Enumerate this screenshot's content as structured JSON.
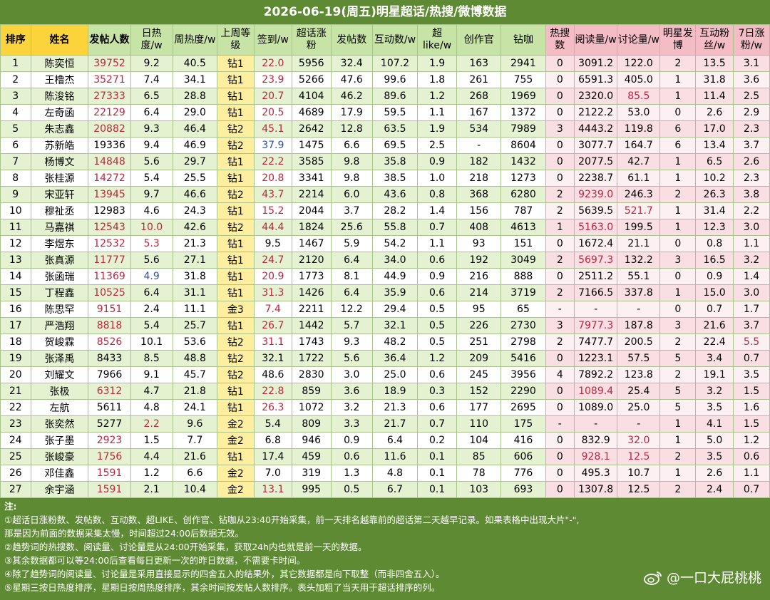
{
  "title": "2026-06-19(周五)明星超话/热搜/微博数据",
  "headers": [
    "排序",
    "姓名",
    "发帖人数",
    "日热度/w",
    "周热度/w",
    "上周等级",
    "签到/w",
    "超话涨粉",
    "发帖数",
    "互动数/w",
    "超like/w",
    "创作官",
    "钻咖",
    "热搜数",
    "阅读量/w",
    "讨论量/w",
    "明星发博",
    "互动粉丝/w",
    "7日涨粉/w"
  ],
  "rows": [
    [
      "1",
      "陈奕恒",
      "39752",
      "9.2",
      "40.5",
      "钻1",
      "22.0",
      "5956",
      "32.4",
      "107.2",
      "1.9",
      "163",
      "2941",
      "0",
      "3091.2",
      "122.0",
      "2",
      "13.5",
      "3.1"
    ],
    [
      "2",
      "王橹杰",
      "35271",
      "7.4",
      "34.1",
      "钻1",
      "23.9",
      "5266",
      "47.6",
      "99.6",
      "1.8",
      "261",
      "755",
      "0",
      "6591.3",
      "405.0",
      "1",
      "31.8",
      "3.6"
    ],
    [
      "3",
      "陈浚铭",
      "27333",
      "6.5",
      "28.8",
      "钻1",
      "20.7",
      "4104",
      "46.2",
      "89.6",
      "1.2",
      "268",
      "1969",
      "0",
      "2320.0",
      "85.5",
      "1",
      "11.4",
      "2.5"
    ],
    [
      "4",
      "左奇函",
      "22129",
      "6.4",
      "29.0",
      "钻1",
      "20.5",
      "4689",
      "17.9",
      "59.5",
      "1.1",
      "167",
      "1372",
      "0",
      "2122.2",
      "53.0",
      "0",
      "2.6",
      "2.9"
    ],
    [
      "5",
      "朱志鑫",
      "20882",
      "9.3",
      "46.4",
      "钻2",
      "45.1",
      "2642",
      "12.8",
      "63.5",
      "1.9",
      "534",
      "7989",
      "3",
      "4443.2",
      "119.8",
      "6",
      "17.0",
      "2.3"
    ],
    [
      "6",
      "苏新皓",
      "19336",
      "9.4",
      "46.9",
      "钻2",
      "37.9",
      "1475",
      "6.6",
      "69.5",
      "2.5",
      "-",
      "8604",
      "0",
      "3077.7",
      "164.7",
      "6",
      "13.4",
      "3.7"
    ],
    [
      "7",
      "杨博文",
      "14848",
      "5.6",
      "29.7",
      "钻1",
      "22.2",
      "3585",
      "9.8",
      "35.8",
      "0.9",
      "182",
      "1432",
      "0",
      "2077.5",
      "42.7",
      "1",
      "6.5",
      "2.6"
    ],
    [
      "8",
      "张桂源",
      "14272",
      "5.4",
      "25.5",
      "钻1",
      "20.8",
      "3341",
      "9.8",
      "38.5",
      "1.0",
      "218",
      "1273",
      "0",
      "2238.7",
      "61.1",
      "1",
      "10.2",
      "2.3"
    ],
    [
      "9",
      "宋亚轩",
      "13945",
      "9.7",
      "46.6",
      "钻2",
      "43.7",
      "2214",
      "6.0",
      "43.6",
      "0.8",
      "368",
      "6280",
      "2",
      "9239.0",
      "246.3",
      "2",
      "26.3",
      "3.8"
    ],
    [
      "10",
      "穆祉丞",
      "12983",
      "4.6",
      "24.3",
      "钻1",
      "15.2",
      "2044",
      "3.7",
      "28.2",
      "1.4",
      "156",
      "787",
      "2",
      "5639.5",
      "521.7",
      "1",
      "31.4",
      "2.2"
    ],
    [
      "11",
      "马嘉祺",
      "12543",
      "10.0",
      "42.6",
      "钻2",
      "44.4",
      "1824",
      "25.6",
      "55.8",
      "0.7",
      "408",
      "4613",
      "1",
      "5163.0",
      "199.5",
      "1",
      "12.3",
      "3.0"
    ],
    [
      "12",
      "李煜东",
      "12532",
      "5.3",
      "21.3",
      "钻1",
      "9.5",
      "1467",
      "5.9",
      "54.2",
      "1.1",
      "93",
      "151",
      "0",
      "1672.4",
      "21.1",
      "0",
      "0.8",
      "1.1"
    ],
    [
      "13",
      "张真源",
      "11777",
      "5.6",
      "27.1",
      "钻1",
      "24.7",
      "2120",
      "6.4",
      "34.0",
      "0.6",
      "192",
      "3049",
      "2",
      "5697.3",
      "132.2",
      "3",
      "16.5",
      "3.2"
    ],
    [
      "14",
      "张函瑞",
      "11369",
      "4.9",
      "31.8",
      "钻1",
      "20.9",
      "1773",
      "8.1",
      "44.9",
      "0.9",
      "216",
      "888",
      "0",
      "2511.2",
      "55.1",
      "0",
      "0.9",
      "1.4"
    ],
    [
      "15",
      "丁程鑫",
      "10525",
      "6.4",
      "31.1",
      "钻1",
      "31.3",
      "1426",
      "6.4",
      "35.9",
      "0.6",
      "214",
      "3719",
      "2",
      "7166.5",
      "337.8",
      "1",
      "15.0",
      "3.0"
    ],
    [
      "16",
      "陈思罕",
      "9151",
      "2.4",
      "11.1",
      "金3",
      "7.4",
      "2211",
      "12.2",
      "29.4",
      "0.5",
      "95",
      "65",
      "-",
      "-",
      "-",
      "0",
      "0.7",
      "1.7"
    ],
    [
      "17",
      "严浩翔",
      "8818",
      "5.4",
      "25.7",
      "钻1",
      "26.7",
      "1442",
      "5.7",
      "32.1",
      "0.5",
      "226",
      "2730",
      "3",
      "7977.3",
      "187.8",
      "3",
      "21.6",
      "3.7"
    ],
    [
      "18",
      "贺峻霖",
      "8526",
      "10.1",
      "53.6",
      "钻2",
      "31.1",
      "1743",
      "9.3",
      "48.2",
      "0.5",
      "251",
      "2798",
      "2",
      "7477.7",
      "200.5",
      "2",
      "22.4",
      "5.5"
    ],
    [
      "19",
      "张泽禹",
      "8433",
      "8.5",
      "48.8",
      "钻2",
      "32.1",
      "1722",
      "5.6",
      "36.4",
      "1.2",
      "209",
      "5416",
      "0",
      "1223.1",
      "57.5",
      "5",
      "3.4",
      "0.7"
    ],
    [
      "20",
      "刘耀文",
      "7966",
      "9.1",
      "45.7",
      "钻2",
      "48.6",
      "2830",
      "3.0",
      "25.0",
      "0.6",
      "245",
      "3956",
      "4",
      "7892.2",
      "123.8",
      "2",
      "19.1",
      "3.5"
    ],
    [
      "21",
      "张极",
      "6312",
      "4.7",
      "21.8",
      "钻1",
      "22.8",
      "859",
      "3.6",
      "18.9",
      "0.3",
      "152",
      "2290",
      "0",
      "1089.4",
      "25.4",
      "5",
      "3.2",
      "1.5"
    ],
    [
      "22",
      "左航",
      "5611",
      "4.8",
      "24.1",
      "钻1",
      "26.3",
      "1072",
      "3.2",
      "21.3",
      "0.6",
      "177",
      "2695",
      "0",
      "1089.0",
      "25.0",
      "5",
      "3.5",
      "1.6"
    ],
    [
      "23",
      "张奕然",
      "5277",
      "2.2",
      "9.6",
      "金2",
      "5.4",
      "809",
      "3.3",
      "21.7",
      "0.7",
      "110",
      "175",
      "-",
      "-",
      "-",
      "1",
      "4.1",
      "1.5"
    ],
    [
      "24",
      "张子墨",
      "2923",
      "1.5",
      "7.7",
      "金2",
      "6.8",
      "946",
      "0.9",
      "6.4",
      "0.2",
      "104",
      "416",
      "0",
      "832.9",
      "32.0",
      "1",
      "5.0",
      "1.2"
    ],
    [
      "25",
      "张峻豪",
      "1756",
      "4.4",
      "21.6",
      "钻1",
      "17.4",
      "459",
      "0.6",
      "11.6",
      "0.1",
      "85",
      "606",
      "0",
      "928.1",
      "12.5",
      "2",
      "3.5",
      "0.6"
    ],
    [
      "26",
      "邓佳鑫",
      "1591",
      "1.2",
      "6.6",
      "金2",
      "7.0",
      "319",
      "1.3",
      "4.8",
      "0.1",
      "78",
      "776",
      "0",
      "495.3",
      "10.7",
      "1",
      "2.6",
      "1.1"
    ],
    [
      "27",
      "余宇涵",
      "1591",
      "2.1",
      "10.4",
      "金2",
      "13.1",
      "995",
      "0.5",
      "6.7",
      "0.1",
      "103",
      "693",
      "0",
      "1307.8",
      "12.5",
      "2",
      "2.4",
      "0.7"
    ]
  ],
  "highlights": {
    "red_cells": [
      [
        0,
        2
      ],
      [
        0,
        6
      ],
      [
        1,
        2
      ],
      [
        1,
        6
      ],
      [
        2,
        2
      ],
      [
        2,
        6
      ],
      [
        2,
        15
      ],
      [
        3,
        2
      ],
      [
        3,
        6
      ],
      [
        4,
        2
      ],
      [
        4,
        6
      ],
      [
        5,
        6
      ],
      [
        6,
        2
      ],
      [
        6,
        6
      ],
      [
        7,
        2
      ],
      [
        7,
        6
      ],
      [
        8,
        2
      ],
      [
        8,
        6
      ],
      [
        8,
        14
      ],
      [
        9,
        6
      ],
      [
        9,
        15
      ],
      [
        10,
        2
      ],
      [
        10,
        3
      ],
      [
        10,
        6
      ],
      [
        10,
        14
      ],
      [
        11,
        2
      ],
      [
        11,
        3
      ],
      [
        12,
        2
      ],
      [
        12,
        6
      ],
      [
        12,
        14
      ],
      [
        13,
        2
      ],
      [
        13,
        6
      ],
      [
        14,
        2
      ],
      [
        14,
        6
      ],
      [
        15,
        2
      ],
      [
        15,
        6
      ],
      [
        16,
        2
      ],
      [
        16,
        6
      ],
      [
        16,
        14
      ],
      [
        17,
        2
      ],
      [
        17,
        6
      ],
      [
        17,
        18
      ],
      [
        20,
        2
      ],
      [
        20,
        6
      ],
      [
        20,
        14
      ],
      [
        21,
        6
      ],
      [
        22,
        3
      ],
      [
        23,
        2
      ],
      [
        23,
        15
      ],
      [
        24,
        2
      ],
      [
        24,
        14
      ],
      [
        24,
        15
      ],
      [
        25,
        2
      ],
      [
        26,
        2
      ],
      [
        26,
        6
      ]
    ],
    "blue_cells": [
      [
        5,
        6
      ],
      [
        13,
        3
      ]
    ],
    "yellow_cells": [
      [
        0,
        5
      ],
      [
        1,
        5
      ],
      [
        2,
        5
      ],
      [
        3,
        5
      ],
      [
        4,
        5
      ],
      [
        5,
        5
      ],
      [
        6,
        5
      ],
      [
        7,
        5
      ],
      [
        8,
        5
      ],
      [
        9,
        5
      ],
      [
        10,
        5
      ],
      [
        11,
        5
      ],
      [
        12,
        5
      ],
      [
        13,
        5
      ],
      [
        14,
        5
      ],
      [
        15,
        5
      ],
      [
        16,
        5
      ],
      [
        17,
        5
      ],
      [
        18,
        5
      ],
      [
        19,
        5
      ],
      [
        20,
        5
      ],
      [
        21,
        5
      ],
      [
        22,
        5
      ],
      [
        23,
        5
      ],
      [
        24,
        5
      ],
      [
        25,
        5
      ],
      [
        26,
        5
      ]
    ]
  },
  "notes": [
    "注:",
    "①超话日涨粉数、发帖数、互动数、超LIKE、创作官、钻咖从23:40开始采集，前一天排名越靠前的超话第二天越早记录。如果表格中出现大片\"-\",",
    "那是因为前面的数据采集太慢，时间超过24:00后数据无效。",
    "②趋势词的热搜数、阅读量、讨论量是从24:00开始采集，获取24h内也就是前一天的数据。",
    "③其余数据都可以等24:00后查看每日更新一次的昨日数据，不需要卡时间。",
    "④除了趋势词的阅读量、讨论量是采用直接显示的四舍五入的结果外，其它数据都是向下取整（而非四舍五入）。",
    "⑤星期三按日热度排序，星期日按周热度排序，其余时间按发帖人数排序。表头加粗了当天用于超话排序的列。"
  ],
  "watermark": "@一口大屁桃桃",
  "colors": {
    "background": "#5d8a32",
    "header_yellow": "#fbd33a",
    "header_green": "#c8e3a6",
    "header_pink": "#f4bcc5",
    "red_text": "#c0253c"
  }
}
